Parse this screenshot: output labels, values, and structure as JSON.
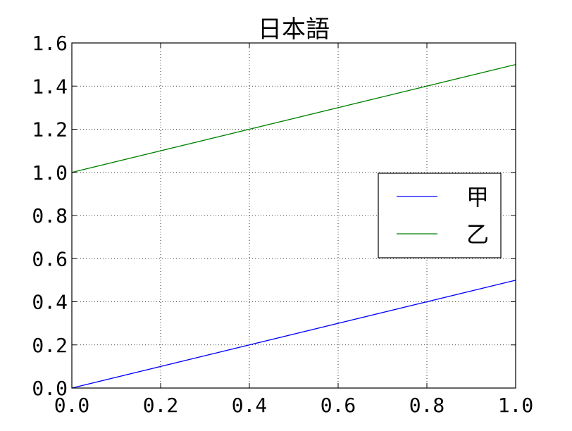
{
  "chart_data": {
    "type": "line",
    "title": "日本語",
    "xlabel": "",
    "ylabel": "",
    "xlim": [
      0.0,
      1.0
    ],
    "ylim": [
      0.0,
      1.6
    ],
    "x_ticks": [
      "0.0",
      "0.2",
      "0.4",
      "0.6",
      "0.8",
      "1.0"
    ],
    "y_ticks": [
      "0.0",
      "0.2",
      "0.4",
      "0.6",
      "0.8",
      "1.0",
      "1.2",
      "1.4",
      "1.6"
    ],
    "grid": true,
    "legend_position": "center-right",
    "series": [
      {
        "name": "甲",
        "color": "#0000ff",
        "x": [
          0.0,
          1.0
        ],
        "y": [
          0.0,
          0.5
        ]
      },
      {
        "name": "乙",
        "color": "#008000",
        "x": [
          0.0,
          1.0
        ],
        "y": [
          1.0,
          1.5
        ]
      }
    ]
  }
}
